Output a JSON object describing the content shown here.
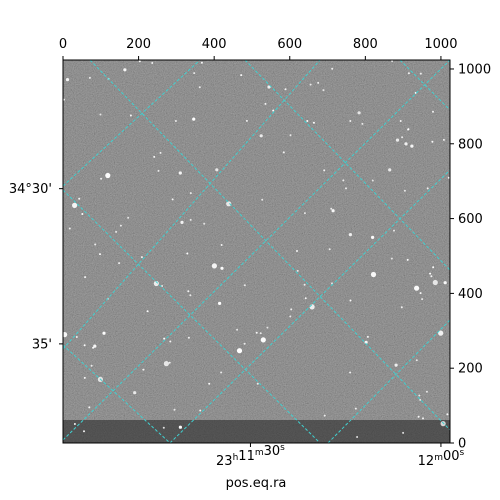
{
  "chart_data": {
    "type": "image",
    "xlabel": "pos.eq.ra",
    "ylabel": "",
    "xlim": [
      0,
      1024
    ],
    "ylim": [
      0,
      1024
    ],
    "top_ticks": [
      0,
      200,
      400,
      600,
      800,
      1000
    ],
    "right_ticks": [
      0,
      200,
      400,
      600,
      800,
      1000
    ],
    "ra_labels": [
      {
        "text_main": "23",
        "sup1": "h",
        "mid": "11",
        "sup2": "m",
        "end": "30",
        "sup3": "s",
        "x": 496
      },
      {
        "text_main": "",
        "sup1": "",
        "mid": "12",
        "sup2": "m",
        "end": "00",
        "sup3": "s",
        "x": 1000
      }
    ],
    "dec_labels": [
      {
        "text": "34°30'",
        "y": 680
      },
      {
        "text": "35'",
        "y": 265
      }
    ],
    "grid_color": "#40d0d0",
    "grid": true,
    "image_colormap": "gray"
  }
}
